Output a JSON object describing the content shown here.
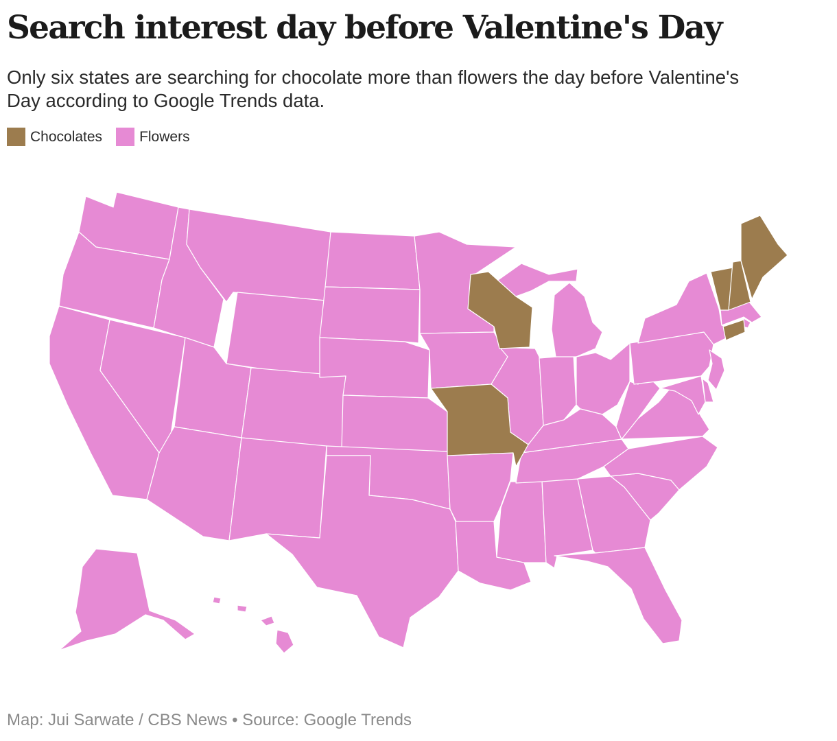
{
  "title": "Search interest day before Valentine's Day",
  "subtitle": "Only six states are searching for chocolate more than flowers the day before Valentine's Day according to Google Trends data.",
  "legend": {
    "chocolates": {
      "label": "Chocolates",
      "color": "#9c7c4e"
    },
    "flowers": {
      "label": "Flowers",
      "color": "#e68ad4"
    }
  },
  "map": {
    "region": "United States",
    "chocolate_states": [
      "Maine",
      "Vermont",
      "New Hampshire",
      "Connecticut",
      "Wisconsin",
      "Missouri"
    ],
    "all_other_states": "Flowers"
  },
  "credit": "Map: Jui Sarwate / CBS News • Source: Google Trends"
}
